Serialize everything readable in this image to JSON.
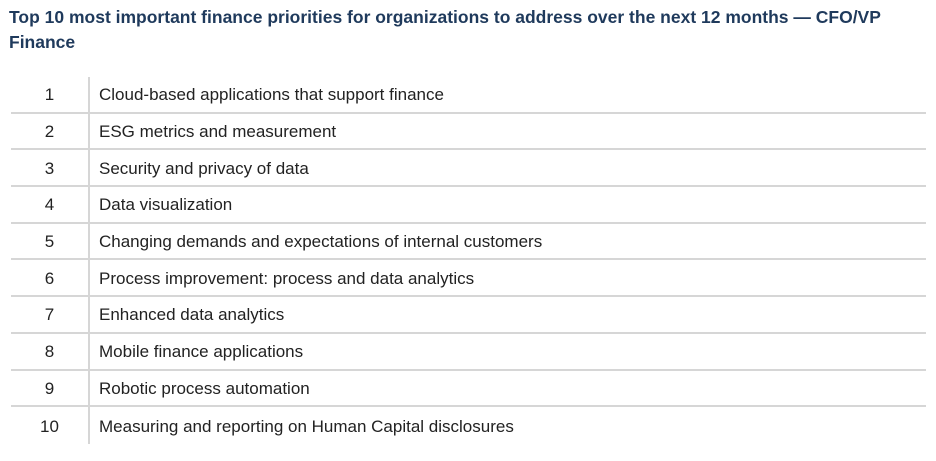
{
  "title": "Top 10 most important finance priorities for organizations to address over the next 12 months — CFO/VP Finance",
  "priorities": [
    {
      "rank": "1",
      "label": "Cloud-based applications that support finance"
    },
    {
      "rank": "2",
      "label": "ESG metrics and measurement"
    },
    {
      "rank": "3",
      "label": "Security and privacy of data"
    },
    {
      "rank": "4",
      "label": "Data visualization"
    },
    {
      "rank": "5",
      "label": "Changing demands and expectations of internal customers"
    },
    {
      "rank": "6",
      "label": "Process improvement: process and data analytics"
    },
    {
      "rank": "7",
      "label": "Enhanced data analytics"
    },
    {
      "rank": "8",
      "label": "Mobile finance applications"
    },
    {
      "rank": "9",
      "label": "Robotic process automation"
    },
    {
      "rank": "10",
      "label": "Measuring and reporting on Human Capital disclosures"
    }
  ]
}
